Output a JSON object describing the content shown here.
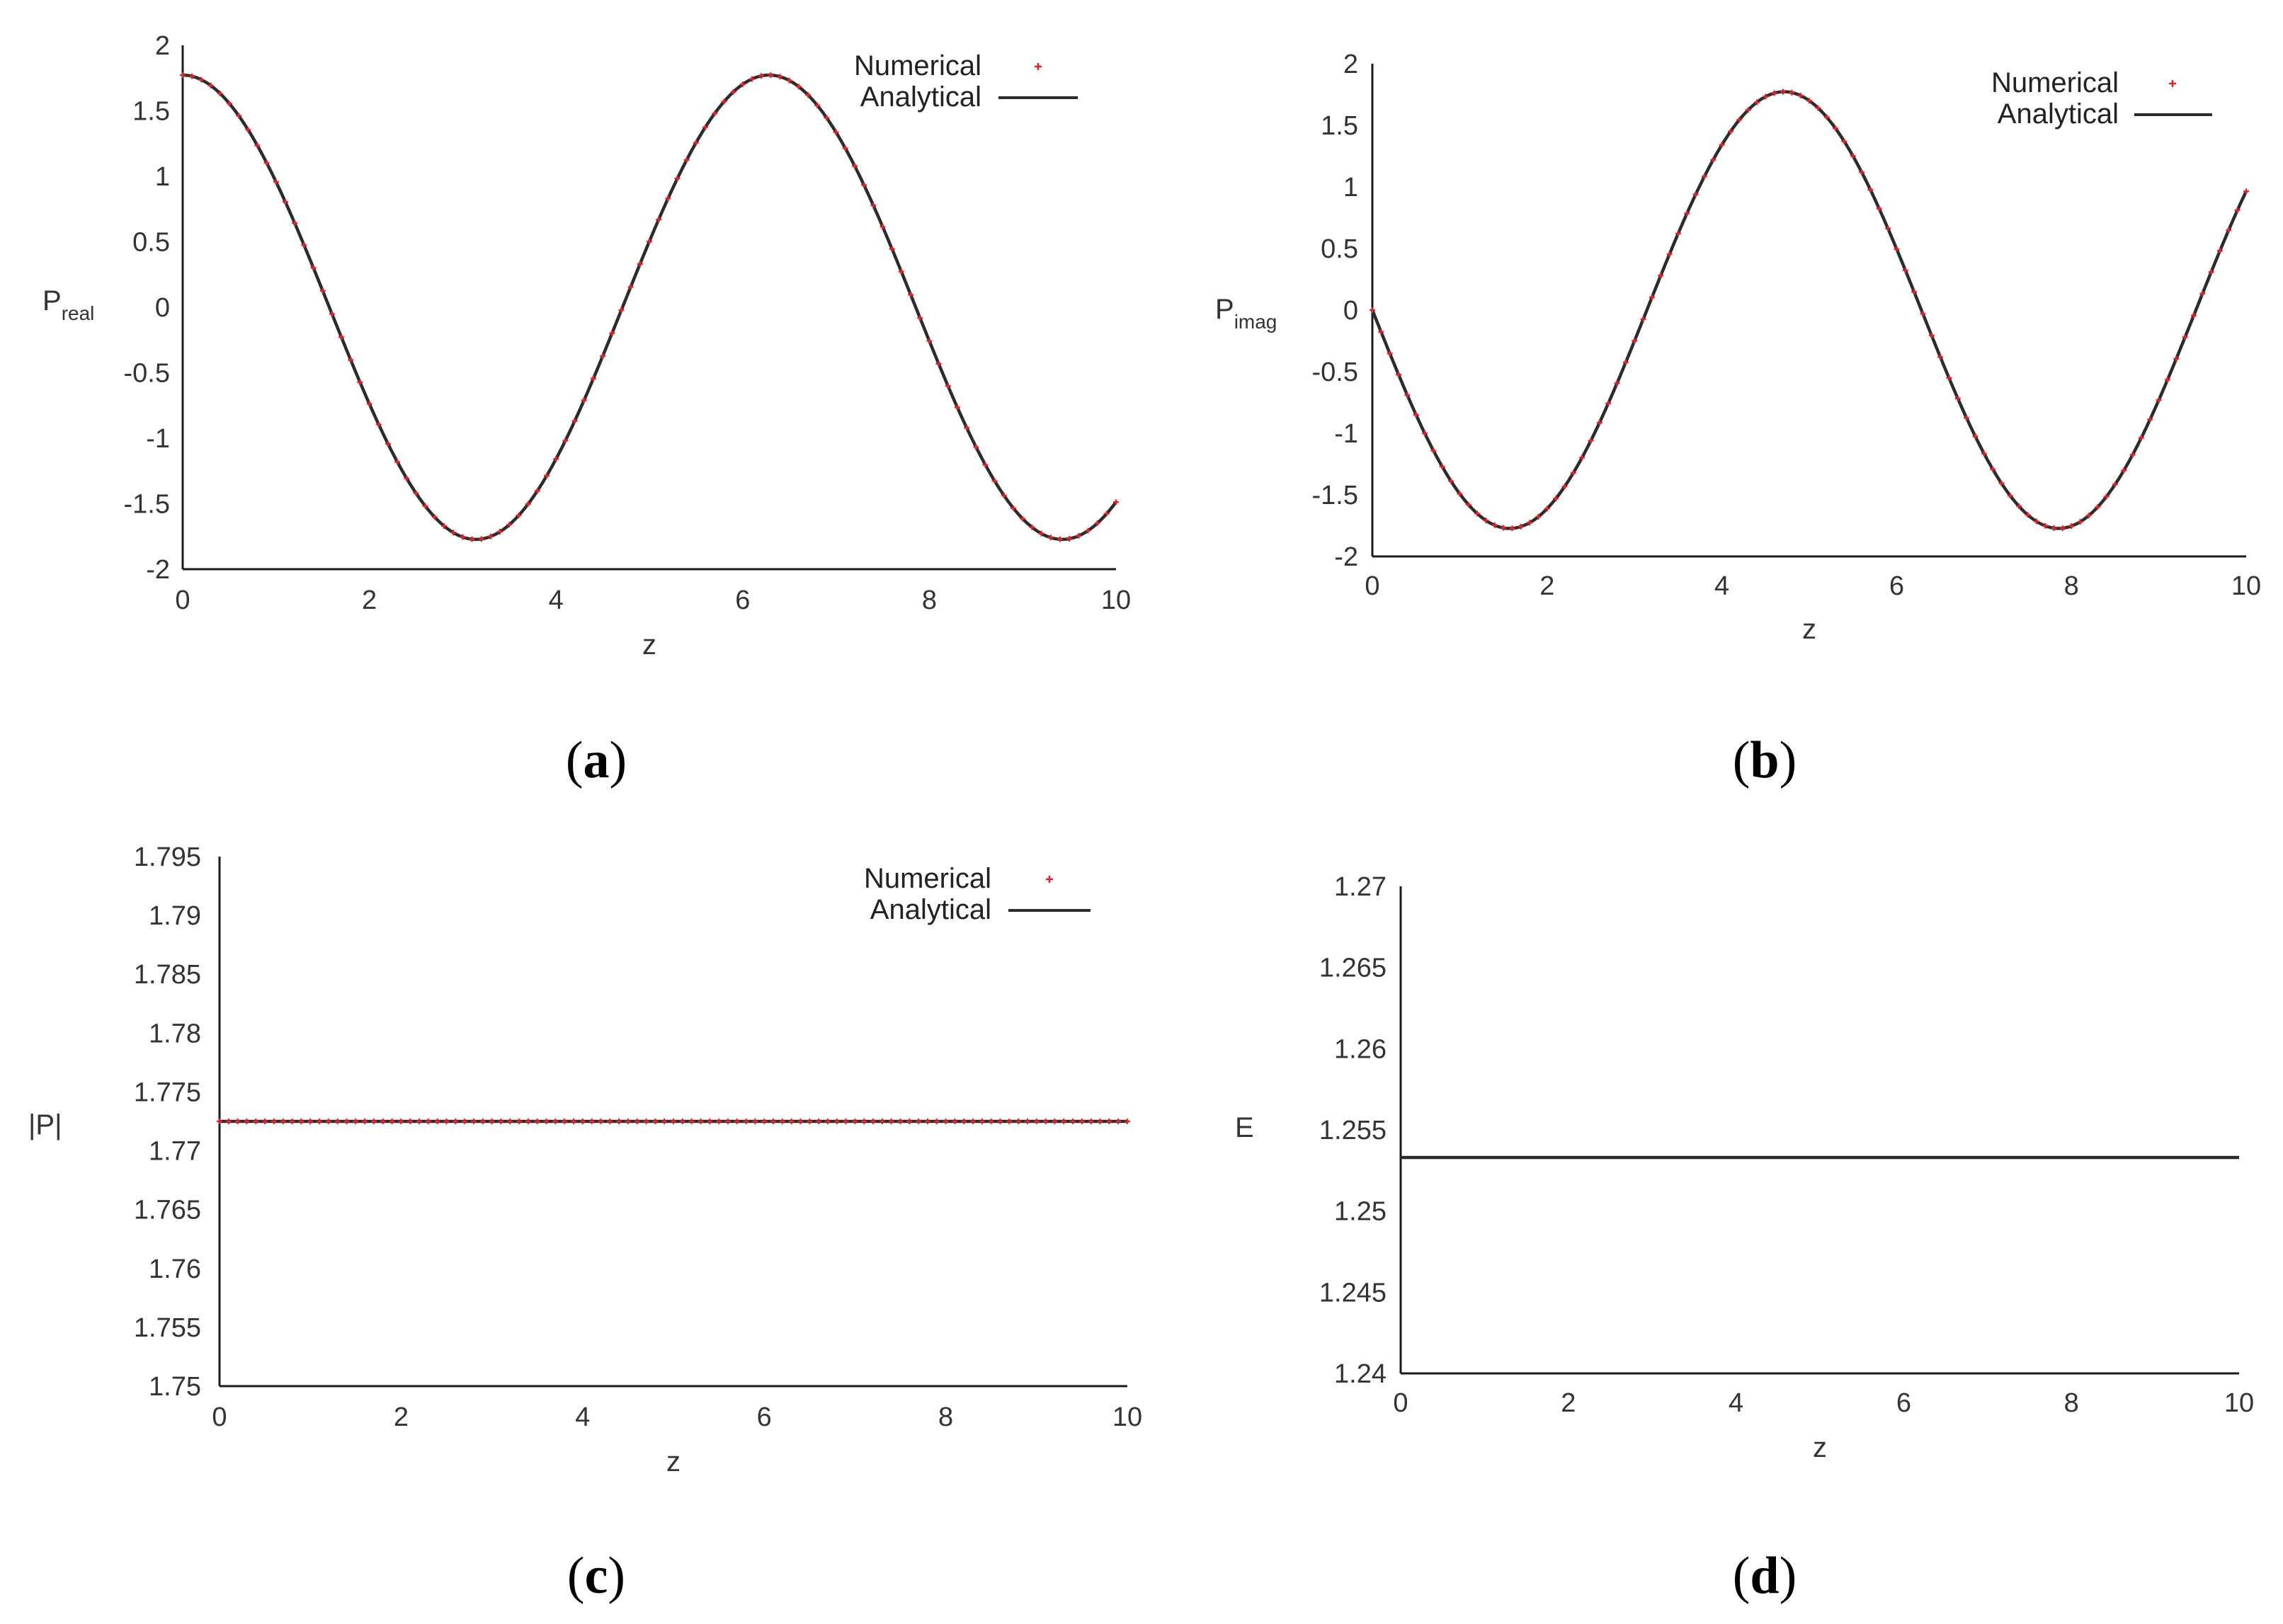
{
  "colors": {
    "analytical": "#2b2b2b",
    "numerical": "#e0242a",
    "axis": "#1a1a1a",
    "text": "#333333"
  },
  "chart_data": [
    {
      "panel": "a",
      "caption": "a",
      "type": "line",
      "xlabel": "z",
      "ylabel": "P",
      "ylabel_sub": "real",
      "xlim": [
        0,
        10
      ],
      "ylim": [
        -2,
        2
      ],
      "xticks": [
        "0",
        "2",
        "4",
        "6",
        "8",
        "10"
      ],
      "yticks": [
        "-2",
        "-1.5",
        "-1",
        "-0.5",
        "0",
        "0.5",
        "1",
        "1.5",
        "2"
      ],
      "legend": "top-right",
      "series": [
        {
          "name": "Numerical",
          "style": "markers",
          "function": "A*cos(z)",
          "amplitude": 1.7725,
          "x_start": 0,
          "x_end": 10,
          "num_points": 101
        },
        {
          "name": "Analytical",
          "style": "line",
          "function": "A*cos(z)",
          "amplitude": 1.7725,
          "x_start": 0,
          "x_end": 10
        }
      ]
    },
    {
      "panel": "b",
      "caption": "b",
      "type": "line",
      "xlabel": "z",
      "ylabel": "P",
      "ylabel_sub": "imag",
      "xlim": [
        0,
        10
      ],
      "ylim": [
        -2,
        2
      ],
      "xticks": [
        "0",
        "2",
        "4",
        "6",
        "8",
        "10"
      ],
      "yticks": [
        "-2",
        "-1.5",
        "-1",
        "-0.5",
        "0",
        "0.5",
        "1",
        "1.5",
        "2"
      ],
      "legend": "top-right",
      "series": [
        {
          "name": "Numerical",
          "style": "markers",
          "function": "-A*sin(z)",
          "amplitude": 1.7725,
          "x_start": 0,
          "x_end": 10,
          "num_points": 101
        },
        {
          "name": "Analytical",
          "style": "line",
          "function": "-A*sin(z)",
          "amplitude": 1.7725,
          "x_start": 0,
          "x_end": 10
        }
      ]
    },
    {
      "panel": "c",
      "caption": "c",
      "type": "line",
      "xlabel": "z",
      "ylabel": "|P|",
      "ylabel_sub": "",
      "xlim": [
        0,
        10
      ],
      "ylim": [
        1.75,
        1.795
      ],
      "xticks": [
        "0",
        "2",
        "4",
        "6",
        "8",
        "10"
      ],
      "yticks": [
        "1.75",
        "1.755",
        "1.76",
        "1.765",
        "1.77",
        "1.775",
        "1.78",
        "1.785",
        "1.79",
        "1.795"
      ],
      "legend": "top-right",
      "series": [
        {
          "name": "Numerical",
          "style": "markers",
          "function": "constant",
          "value": 1.7725,
          "x_start": 0,
          "x_end": 10,
          "num_points": 101
        },
        {
          "name": "Analytical",
          "style": "line",
          "function": "constant",
          "value": 1.7725,
          "x_start": 0,
          "x_end": 10
        }
      ]
    },
    {
      "panel": "d",
      "caption": "d",
      "type": "line",
      "xlabel": "z",
      "ylabel": "E",
      "ylabel_sub": "",
      "xlim": [
        0,
        10
      ],
      "ylim": [
        1.24,
        1.27
      ],
      "xticks": [
        "0",
        "2",
        "4",
        "6",
        "8",
        "10"
      ],
      "yticks": [
        "1.24",
        "1.245",
        "1.25",
        "1.255",
        "1.26",
        "1.265",
        "1.27"
      ],
      "legend": "none",
      "series": [
        {
          "style": "line",
          "function": "constant",
          "value": 1.2533,
          "x_start": 0,
          "x_end": 10
        }
      ]
    }
  ]
}
